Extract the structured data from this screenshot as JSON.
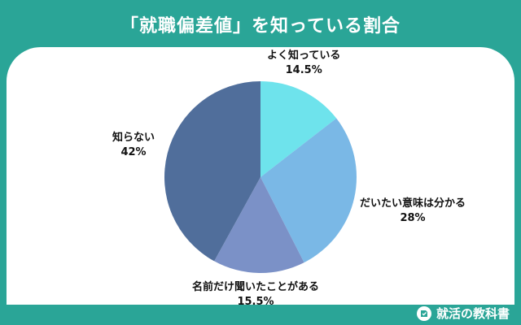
{
  "title": "「就職偏差値」を知っている割合",
  "footer": {
    "brand": "就活の教科書"
  },
  "colors": {
    "background": "#2aa597",
    "panel": "#ffffff",
    "slices": [
      "#6ee3ec",
      "#7ab8e6",
      "#7b91c7",
      "#506e9b"
    ]
  },
  "chart_data": {
    "type": "pie",
    "title": "「就職偏差値」を知っている割合",
    "labels": [
      "よく知っている",
      "だいたい意味は分かる",
      "名前だけ聞いたことがある",
      "知らない"
    ],
    "values": [
      14.5,
      28,
      15.5,
      42
    ],
    "value_labels": [
      "14.5%",
      "28%",
      "15.5%",
      "42%"
    ],
    "legend": "none"
  }
}
